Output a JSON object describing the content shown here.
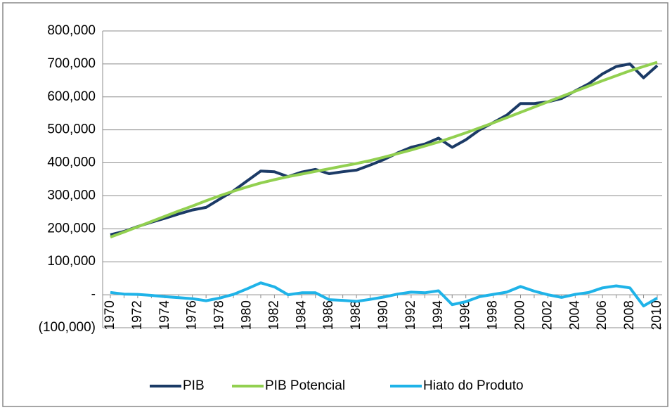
{
  "chart_data": {
    "type": "line",
    "categories": [
      "1970",
      null,
      "1972",
      null,
      "1974",
      null,
      "1976",
      null,
      "1978",
      null,
      "1980",
      null,
      "1982",
      null,
      "1984",
      null,
      "1986",
      null,
      "1988",
      null,
      "1990",
      null,
      "1992",
      null,
      "1994",
      null,
      "1996",
      null,
      "1998",
      null,
      "2000",
      null,
      "2002",
      null,
      "2004",
      null,
      "2006",
      null,
      "2008",
      null,
      "2010"
    ],
    "series": [
      {
        "name": "PIB",
        "color": "#1b3a66",
        "values": [
          182000,
          192000,
          207000,
          220000,
          232000,
          245000,
          257000,
          265000,
          290000,
          315000,
          345000,
          375000,
          373000,
          358000,
          372000,
          380000,
          367000,
          373000,
          378000,
          393000,
          410000,
          430000,
          447000,
          457000,
          475000,
          447000,
          470000,
          500000,
          522000,
          545000,
          580000,
          580000,
          585000,
          595000,
          618000,
          640000,
          670000,
          692000,
          700000,
          658000,
          695000
        ]
      },
      {
        "name": "PIB Potencial",
        "color": "#92d050",
        "values": [
          175000,
          190000,
          206000,
          222000,
          238000,
          254000,
          269000,
          285000,
          300000,
          314000,
          327000,
          339000,
          349000,
          358000,
          366000,
          374000,
          382000,
          390000,
          398000,
          407000,
          417000,
          428000,
          439000,
          451000,
          463000,
          477000,
          491000,
          506000,
          521000,
          537000,
          553000,
          569000,
          585000,
          601000,
          617000,
          633000,
          649000,
          664000,
          679000,
          692000,
          705000
        ]
      },
      {
        "name": "Hiato do Produto",
        "color": "#1fb3e8",
        "values": [
          7000,
          2000,
          1000,
          -2000,
          -6000,
          -9000,
          -12000,
          -18000,
          -10000,
          1000,
          18000,
          36000,
          24000,
          0,
          6000,
          6000,
          -15000,
          -17000,
          -20000,
          -14000,
          -7000,
          2000,
          8000,
          6000,
          12000,
          -30000,
          -21000,
          -6000,
          1000,
          8000,
          25000,
          11000,
          0,
          -8000,
          1000,
          7000,
          21000,
          27000,
          21000,
          -34000,
          -10000
        ]
      }
    ],
    "ylim": [
      -100000,
      800000
    ],
    "yticks": [
      {
        "value": -100000,
        "label": "(100,000)"
      },
      {
        "value": 0,
        "label": "-"
      },
      {
        "value": 100000,
        "label": "100,000"
      },
      {
        "value": 200000,
        "label": "200,000"
      },
      {
        "value": 300000,
        "label": "300,000"
      },
      {
        "value": 400000,
        "label": "400,000"
      },
      {
        "value": 500000,
        "label": "500,000"
      },
      {
        "value": 600000,
        "label": "600,000"
      },
      {
        "value": 700000,
        "label": "700,000"
      },
      {
        "value": 800000,
        "label": "800,000"
      }
    ],
    "grid": true,
    "legend": "bottom"
  }
}
